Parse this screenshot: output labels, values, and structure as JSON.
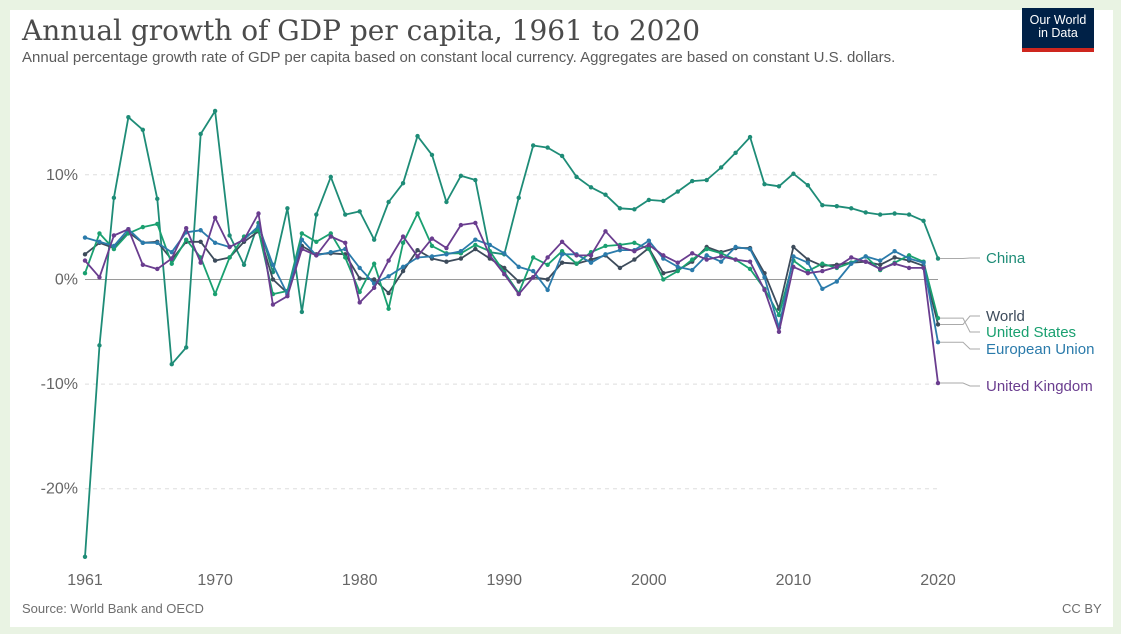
{
  "header": {
    "title": "Annual growth of GDP per capita, 1961 to 2020",
    "subtitle": "Annual percentage growth rate of GDP per capita based on constant local currency. Aggregates are based on constant U.S. dollars."
  },
  "logo": {
    "line1": "Our World",
    "line2": "in Data",
    "bg": "#002147",
    "accent": "#ce261e"
  },
  "footer": {
    "source": "Source: World Bank and OECD",
    "license": "CC BY"
  },
  "chart_data": {
    "type": "line",
    "xlabel": "",
    "ylabel": "",
    "xlim": [
      1961,
      2020
    ],
    "ylim": [
      -27,
      16
    ],
    "x_ticks": [
      1961,
      1970,
      1980,
      1990,
      2000,
      2010,
      2020
    ],
    "y_ticks": [
      {
        "value": 10,
        "label": "10%"
      },
      {
        "value": 0,
        "label": "0%"
      },
      {
        "value": -10,
        "label": "-10%"
      },
      {
        "value": -20,
        "label": "-20%"
      }
    ],
    "grid": "horizontal dashed",
    "legend_position": "right (end labels)",
    "x": [
      1961,
      1962,
      1963,
      1964,
      1965,
      1966,
      1967,
      1968,
      1969,
      1970,
      1971,
      1972,
      1973,
      1974,
      1975,
      1976,
      1977,
      1978,
      1979,
      1980,
      1981,
      1982,
      1983,
      1984,
      1985,
      1986,
      1987,
      1988,
      1989,
      1990,
      1991,
      1992,
      1993,
      1994,
      1995,
      1996,
      1997,
      1998,
      1999,
      2000,
      2001,
      2002,
      2003,
      2004,
      2005,
      2006,
      2007,
      2008,
      2009,
      2010,
      2011,
      2012,
      2013,
      2014,
      2015,
      2016,
      2017,
      2018,
      2019,
      2020
    ],
    "series": [
      {
        "name": "China",
        "color": "#1e8c77",
        "values": [
          -26.5,
          -6.3,
          7.8,
          15.5,
          14.3,
          7.7,
          -8.1,
          -6.5,
          13.9,
          16.1,
          4.2,
          1.4,
          5.4,
          0.7,
          6.8,
          -3.1,
          6.2,
          9.8,
          6.2,
          6.5,
          3.8,
          7.4,
          9.2,
          13.7,
          11.9,
          7.4,
          9.9,
          9.5,
          2.6,
          2.4,
          7.8,
          12.8,
          12.6,
          11.8,
          9.8,
          8.8,
          8.1,
          6.8,
          6.7,
          7.6,
          7.5,
          8.4,
          9.4,
          9.5,
          10.7,
          12.1,
          13.6,
          9.1,
          8.9,
          10.1,
          9.0,
          7.1,
          7.0,
          6.8,
          6.4,
          6.2,
          6.3,
          6.2,
          5.6,
          2.0
        ]
      },
      {
        "name": "World",
        "color": "#3d4b5b",
        "values": [
          2.4,
          3.5,
          3.0,
          4.5,
          3.5,
          3.6,
          1.9,
          3.6,
          3.6,
          1.8,
          2.1,
          3.6,
          4.6,
          0.0,
          -1.3,
          3.2,
          2.4,
          2.5,
          2.4,
          0.1,
          0.0,
          -1.3,
          0.8,
          2.8,
          2.0,
          1.7,
          2.0,
          2.9,
          2.0,
          1.1,
          -0.2,
          0.2,
          0.0,
          1.6,
          1.5,
          1.9,
          2.3,
          1.1,
          1.9,
          3.0,
          0.6,
          0.9,
          1.7,
          3.1,
          2.6,
          3.0,
          3.0,
          0.6,
          -2.8,
          3.1,
          1.9,
          1.3,
          1.4,
          1.6,
          1.7,
          1.4,
          2.1,
          1.8,
          1.3,
          -4.3
        ]
      },
      {
        "name": "United States",
        "color": "#1aa070",
        "values": [
          0.6,
          4.4,
          2.9,
          4.4,
          5.0,
          5.3,
          1.5,
          3.8,
          2.1,
          -1.4,
          2.1,
          4.1,
          4.7,
          -1.4,
          -1.1,
          4.4,
          3.6,
          4.4,
          2.1,
          -1.2,
          1.5,
          -2.8,
          3.5,
          6.3,
          3.2,
          2.5,
          2.5,
          3.3,
          2.7,
          0.7,
          -1.3,
          2.1,
          1.4,
          2.7,
          1.5,
          2.6,
          3.2,
          3.3,
          3.5,
          2.9,
          0.0,
          0.8,
          1.9,
          2.9,
          2.5,
          1.9,
          1.0,
          -0.9,
          -3.4,
          1.8,
          0.8,
          1.5,
          1.1,
          1.6,
          2.2,
          0.9,
          1.6,
          2.3,
          1.7,
          -3.7
        ]
      },
      {
        "name": "European Union",
        "color": "#2b7bab",
        "values": [
          4.0,
          3.6,
          3.2,
          4.8,
          3.5,
          3.5,
          2.6,
          4.5,
          4.7,
          3.5,
          3.1,
          3.8,
          5.1,
          1.4,
          -1.4,
          3.8,
          2.3,
          2.6,
          2.9,
          1.1,
          -0.4,
          0.3,
          1.2,
          2.1,
          2.2,
          2.4,
          2.7,
          3.8,
          3.3,
          2.5,
          1.2,
          0.8,
          -1.0,
          2.4,
          2.4,
          1.6,
          2.4,
          2.8,
          2.8,
          3.7,
          2.0,
          1.2,
          0.9,
          2.3,
          1.7,
          3.1,
          2.9,
          0.2,
          -4.6,
          2.2,
          1.6,
          -0.9,
          -0.2,
          1.5,
          2.2,
          1.8,
          2.7,
          2.0,
          1.6,
          -6.0
        ]
      },
      {
        "name": "United Kingdom",
        "color": "#6a3d8f",
        "values": [
          1.8,
          0.2,
          4.2,
          4.8,
          1.4,
          1.0,
          2.0,
          4.9,
          1.6,
          5.9,
          3.1,
          3.8,
          6.3,
          -2.4,
          -1.6,
          2.9,
          2.3,
          4.1,
          3.5,
          -2.2,
          -0.8,
          1.8,
          4.1,
          2.2,
          3.9,
          3.0,
          5.2,
          5.4,
          2.3,
          0.5,
          -1.4,
          0.2,
          2.1,
          3.6,
          2.3,
          2.3,
          4.6,
          3.1,
          2.7,
          3.3,
          2.3,
          1.6,
          2.5,
          1.9,
          2.2,
          1.9,
          1.7,
          -1.0,
          -5.0,
          1.2,
          0.6,
          0.8,
          1.2,
          2.1,
          1.7,
          1.0,
          1.5,
          1.1,
          1.1,
          -9.9
        ]
      }
    ]
  }
}
